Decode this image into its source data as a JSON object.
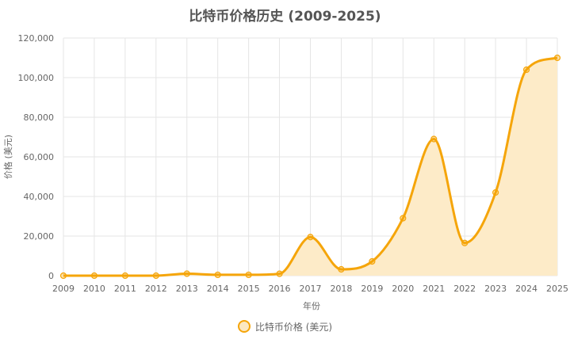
{
  "chart_data": {
    "type": "line",
    "title": "比特币价格历史 (2009-2025)",
    "xlabel": "年份",
    "ylabel": "价格 (美元)",
    "categories": [
      "2009",
      "2010",
      "2011",
      "2012",
      "2013",
      "2014",
      "2015",
      "2016",
      "2017",
      "2018",
      "2019",
      "2020",
      "2021",
      "2022",
      "2023",
      "2024",
      "2025"
    ],
    "series": [
      {
        "name": "比特币价格 (美元)",
        "values": [
          0,
          0.1,
          5,
          13,
          1000,
          430,
          430,
          950,
          19500,
          3200,
          7200,
          29000,
          69000,
          16500,
          42000,
          104000,
          110000
        ]
      }
    ],
    "ylim": [
      0,
      120000
    ],
    "yticks": [
      0,
      20000,
      40000,
      60000,
      80000,
      100000,
      120000
    ],
    "ytick_labels": [
      "0",
      "20,000",
      "40,000",
      "60,000",
      "80,000",
      "100,000",
      "120,000"
    ],
    "grid": true,
    "legend_position": "bottom",
    "fill": true,
    "colors": {
      "line": "#f5a50a",
      "fill": "#fdebc8",
      "grid": "#e5e5e5"
    }
  }
}
